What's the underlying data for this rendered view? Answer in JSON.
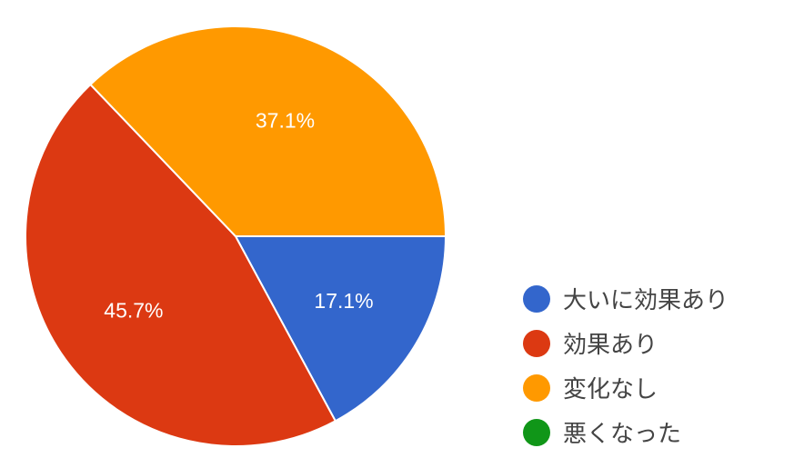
{
  "chart_data": {
    "type": "pie",
    "title": "",
    "start_angle": "3 o'clock, clockwise",
    "legend_position": "right-bottom",
    "slices": [
      {
        "label": "大いに効果あり",
        "value": 17.1,
        "display": "17.1%",
        "color": "#3366cc"
      },
      {
        "label": "効果あり",
        "value": 45.7,
        "display": "45.7%",
        "color": "#dc3912"
      },
      {
        "label": "変化なし",
        "value": 37.1,
        "display": "37.1%",
        "color": "#ff9900"
      },
      {
        "label": "悪くなった",
        "value": 0,
        "display": "",
        "color": "#109618"
      }
    ]
  }
}
